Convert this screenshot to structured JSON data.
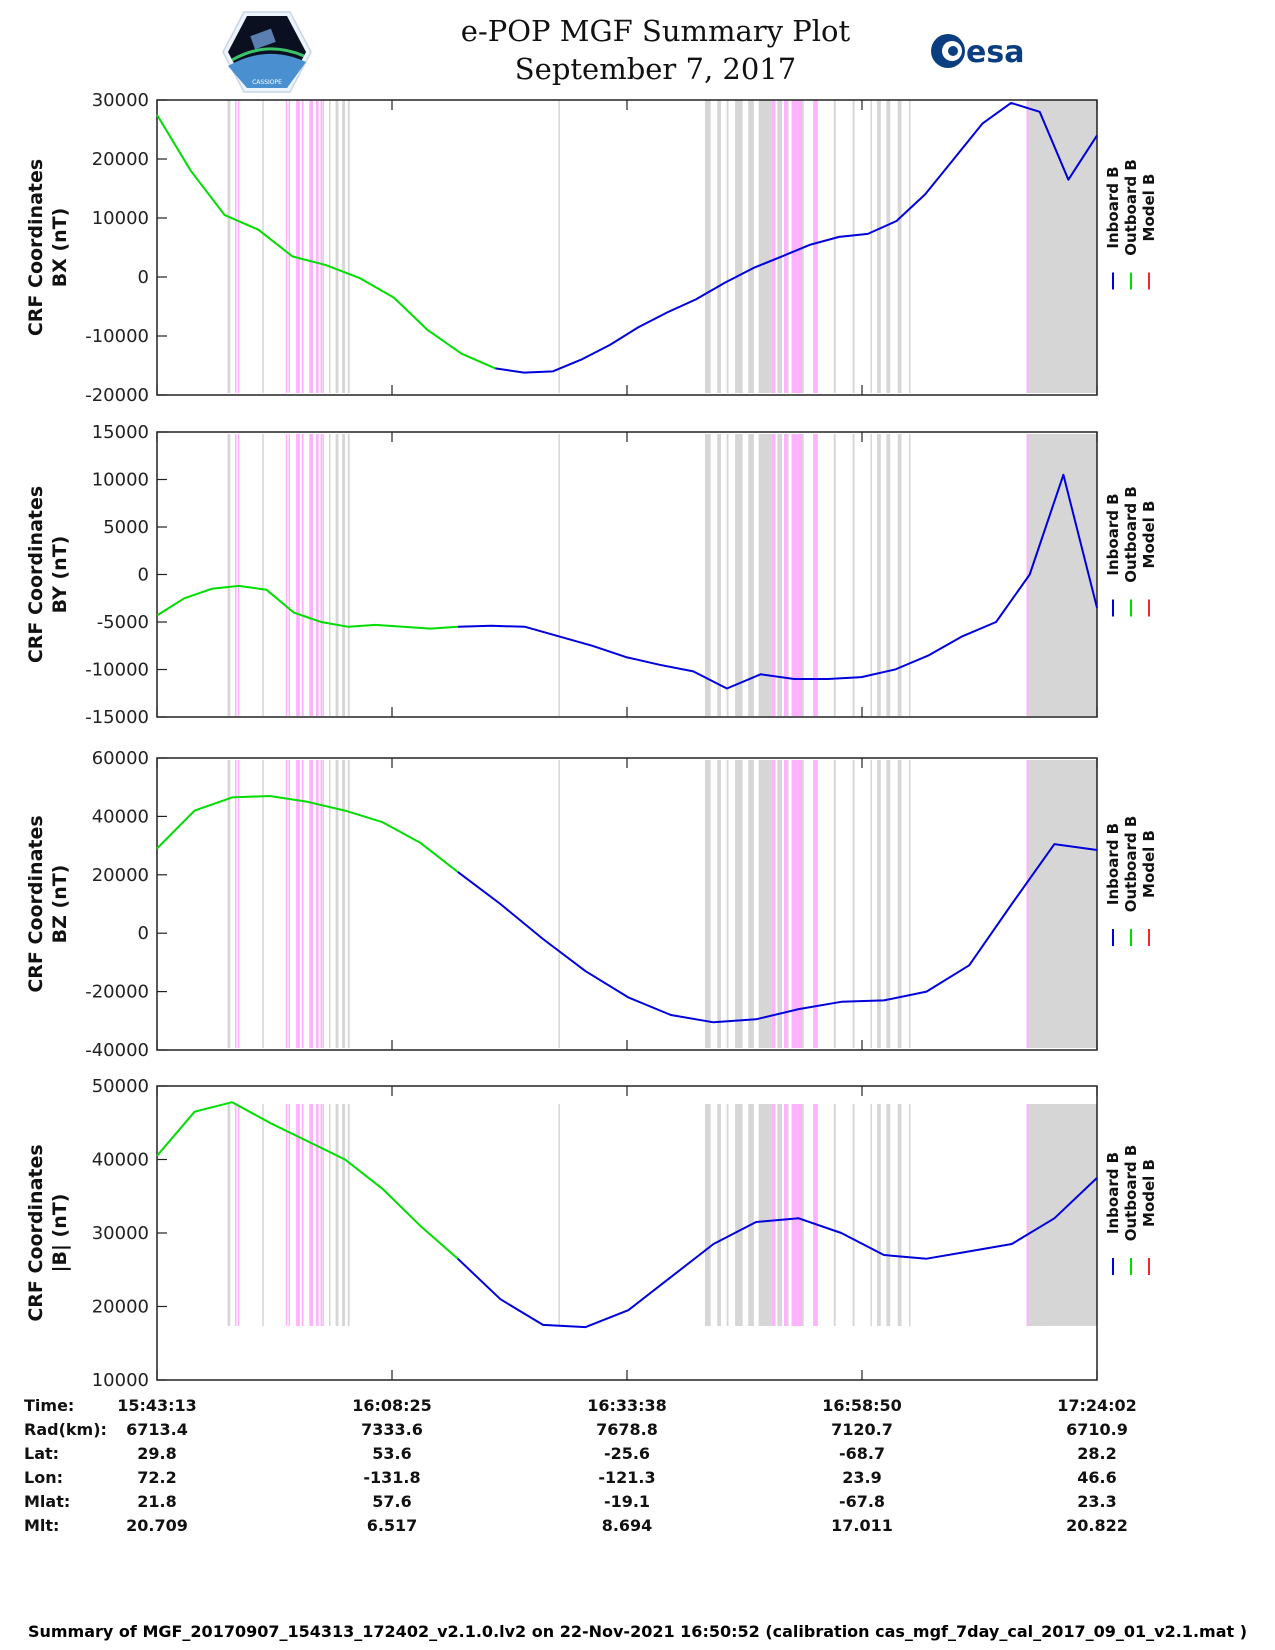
{
  "header": {
    "title": "e-POP MGF Summary Plot",
    "date": "September 7, 2017",
    "logo_left": "CASSIOPE mission logo",
    "logo_right": "esa"
  },
  "colors": {
    "inboard": "#0000dd",
    "outboard": "#00dd00",
    "model": "#ff2222",
    "gray_band": "#d6d6d6",
    "pink_band": "#ffb3ff"
  },
  "chart_data": [
    {
      "type": "line",
      "title": "",
      "ylabel": [
        "CRF Coordinates",
        "BX (nT)"
      ],
      "ylim": [
        -20000,
        30000
      ],
      "yticks": [
        "30000",
        "20000",
        "10000",
        "0",
        "-10000",
        "-20000"
      ],
      "ytick_values": [
        30000,
        20000,
        10000,
        0,
        -10000,
        -20000
      ],
      "legend": [
        "Inboard B",
        "Outboard B",
        "Model B"
      ],
      "legend_placement": "right",
      "x": [
        0,
        0.05,
        0.08,
        0.1,
        0.13,
        0.15,
        0.18,
        0.2,
        0.25,
        0.3,
        0.35,
        0.38,
        0.42,
        0.47,
        0.52,
        0.57,
        0.6,
        0.62,
        0.64,
        0.66,
        0.68,
        0.7,
        0.73,
        0.76,
        0.8,
        0.83,
        0.86,
        0.89,
        0.92,
        0.94,
        0.96,
        0.98,
        1.0
      ],
      "series": [
        {
          "name": "Outboard B",
          "x_range": [
            0,
            0.36
          ],
          "values": [
            27500,
            18000,
            10500,
            8000,
            3500,
            2000,
            -200,
            -3500,
            -9000,
            -13000,
            -15500
          ]
        },
        {
          "name": "Inboard B",
          "x_range": [
            0.36,
            1.0
          ],
          "values": [
            -15500,
            -16200,
            -16000,
            -14000,
            -11500,
            -8500,
            -6000,
            -3800,
            -1000,
            1500,
            3500,
            5500,
            6800,
            7300,
            9500,
            14000,
            20000,
            26000,
            29500,
            28000,
            16500,
            24000
          ]
        },
        {
          "name": "Model B",
          "x_range": [
            0,
            1.0
          ],
          "values": []
        }
      ]
    },
    {
      "type": "line",
      "ylabel": [
        "CRF Coordinates",
        "BY (nT)"
      ],
      "ylim": [
        -15000,
        15000
      ],
      "yticks": [
        "15000",
        "10000",
        "5000",
        "0",
        "-5000",
        "-10000",
        "-15000"
      ],
      "ytick_values": [
        15000,
        10000,
        5000,
        0,
        -5000,
        -10000,
        -15000
      ],
      "legend": [
        "Inboard B",
        "Outboard B",
        "Model B"
      ],
      "legend_placement": "right",
      "series": [
        {
          "name": "Outboard B",
          "x_range": [
            0,
            0.32
          ],
          "values": [
            -4300,
            -2500,
            -1500,
            -1200,
            -1600,
            -4000,
            -5000,
            -5500,
            -5300,
            -5500,
            -5700,
            -5500
          ]
        },
        {
          "name": "Inboard B",
          "x_range": [
            0.32,
            1.0
          ],
          "values": [
            -5500,
            -5400,
            -5500,
            -6500,
            -7500,
            -8700,
            -9500,
            -10200,
            -12000,
            -10500,
            -11000,
            -11000,
            -10800,
            -10000,
            -8500,
            -6500,
            -5000,
            0,
            10500,
            -3500
          ]
        }
      ]
    },
    {
      "type": "line",
      "ylabel": [
        "CRF Coordinates",
        "BZ (nT)"
      ],
      "ylim": [
        -40000,
        60000
      ],
      "yticks": [
        "60000",
        "40000",
        "20000",
        "0",
        "-20000",
        "-40000"
      ],
      "ytick_values": [
        60000,
        40000,
        20000,
        0,
        -20000,
        -40000
      ],
      "legend": [
        "Inboard B",
        "Outboard B",
        "Model B"
      ],
      "legend_placement": "right",
      "series": [
        {
          "name": "Outboard B",
          "x_range": [
            0,
            0.32
          ],
          "values": [
            29000,
            42000,
            46500,
            47000,
            45000,
            42000,
            38000,
            31000,
            21000
          ]
        },
        {
          "name": "Inboard B",
          "x_range": [
            0.32,
            1.0
          ],
          "values": [
            21000,
            10000,
            -2000,
            -13000,
            -22000,
            -28000,
            -30500,
            -29500,
            -26000,
            -23500,
            -23000,
            -20000,
            -11000,
            10000,
            30500,
            28500
          ]
        }
      ]
    },
    {
      "type": "line",
      "ylabel": [
        "CRF Coordinates",
        "|B| (nT)"
      ],
      "ylim": [
        10000,
        50000
      ],
      "yticks": [
        "50000",
        "40000",
        "30000",
        "20000",
        "10000"
      ],
      "ytick_values": [
        50000,
        40000,
        30000,
        20000,
        10000
      ],
      "legend": [
        "Inboard B",
        "Outboard B",
        "Model B"
      ],
      "legend_placement": "right",
      "series": [
        {
          "name": "Outboard B",
          "x_range": [
            0,
            0.32
          ],
          "values": [
            40500,
            46500,
            47800,
            45000,
            42500,
            40000,
            36000,
            31000,
            26500
          ]
        },
        {
          "name": "Inboard B",
          "x_range": [
            0.32,
            1.0
          ],
          "values": [
            26500,
            21000,
            17500,
            17200,
            19500,
            24000,
            28500,
            31500,
            32000,
            30000,
            27000,
            26500,
            27500,
            28500,
            32000,
            37500
          ]
        }
      ]
    }
  ],
  "bands": {
    "gray": [
      [
        0.075,
        0.078
      ],
      [
        0.112,
        0.113
      ],
      [
        0.183,
        0.184
      ],
      [
        0.19,
        0.193
      ],
      [
        0.197,
        0.2
      ],
      [
        0.203,
        0.205
      ],
      [
        0.427,
        0.428
      ],
      [
        0.583,
        0.589
      ],
      [
        0.596,
        0.6
      ],
      [
        0.606,
        0.608
      ],
      [
        0.615,
        0.623
      ],
      [
        0.629,
        0.635
      ],
      [
        0.64,
        0.654
      ],
      [
        0.66,
        0.665
      ],
      [
        0.669,
        0.672
      ],
      [
        0.682,
        0.688
      ],
      [
        0.699,
        0.7
      ],
      [
        0.72,
        0.722
      ],
      [
        0.74,
        0.742
      ],
      [
        0.759,
        0.76
      ],
      [
        0.766,
        0.768
      ],
      [
        0.768,
        0.77
      ],
      [
        0.776,
        0.78
      ],
      [
        0.788,
        0.792
      ],
      [
        0.8,
        0.8
      ],
      [
        0.925,
        1.0
      ]
    ],
    "pink": [
      [
        0.083,
        0.084
      ],
      [
        0.086,
        0.087
      ],
      [
        0.137,
        0.138
      ],
      [
        0.14,
        0.141
      ],
      [
        0.148,
        0.152
      ],
      [
        0.154,
        0.156
      ],
      [
        0.162,
        0.166
      ],
      [
        0.169,
        0.172
      ],
      [
        0.174,
        0.175
      ],
      [
        0.176,
        0.177
      ],
      [
        0.654,
        0.658
      ],
      [
        0.667,
        0.67
      ],
      [
        0.675,
        0.686
      ],
      [
        0.698,
        0.703
      ],
      [
        0.925,
        0.927
      ]
    ]
  },
  "x_axis": {
    "ticks": [
      "15:43:13",
      "16:08:25",
      "16:33:38",
      "16:58:50",
      "17:24:02"
    ]
  },
  "info_table": {
    "rows": [
      {
        "label": "Time:",
        "values": [
          "15:43:13",
          "16:08:25",
          "16:33:38",
          "16:58:50",
          "17:24:02"
        ]
      },
      {
        "label": "Rad(km):",
        "values": [
          "6713.4",
          "7333.6",
          "7678.8",
          "7120.7",
          "6710.9"
        ]
      },
      {
        "label": "Lat:",
        "values": [
          "29.8",
          "53.6",
          "-25.6",
          "-68.7",
          "28.2"
        ]
      },
      {
        "label": "Lon:",
        "values": [
          "72.2",
          "-131.8",
          "-121.3",
          "23.9",
          "46.6"
        ]
      },
      {
        "label": "Mlat:",
        "values": [
          "21.8",
          "57.6",
          "-19.1",
          "-67.8",
          "23.3"
        ]
      },
      {
        "label": "Mlt:",
        "values": [
          "20.709",
          "6.517",
          "8.694",
          "17.011",
          "20.822"
        ]
      }
    ]
  },
  "footer": "Summary of MGF_20170907_154313_172402_v2.1.0.lv2 on 22-Nov-2021 16:50:52 (calibration cas_mgf_7day_cal_2017_09_01_v2.1.mat )"
}
